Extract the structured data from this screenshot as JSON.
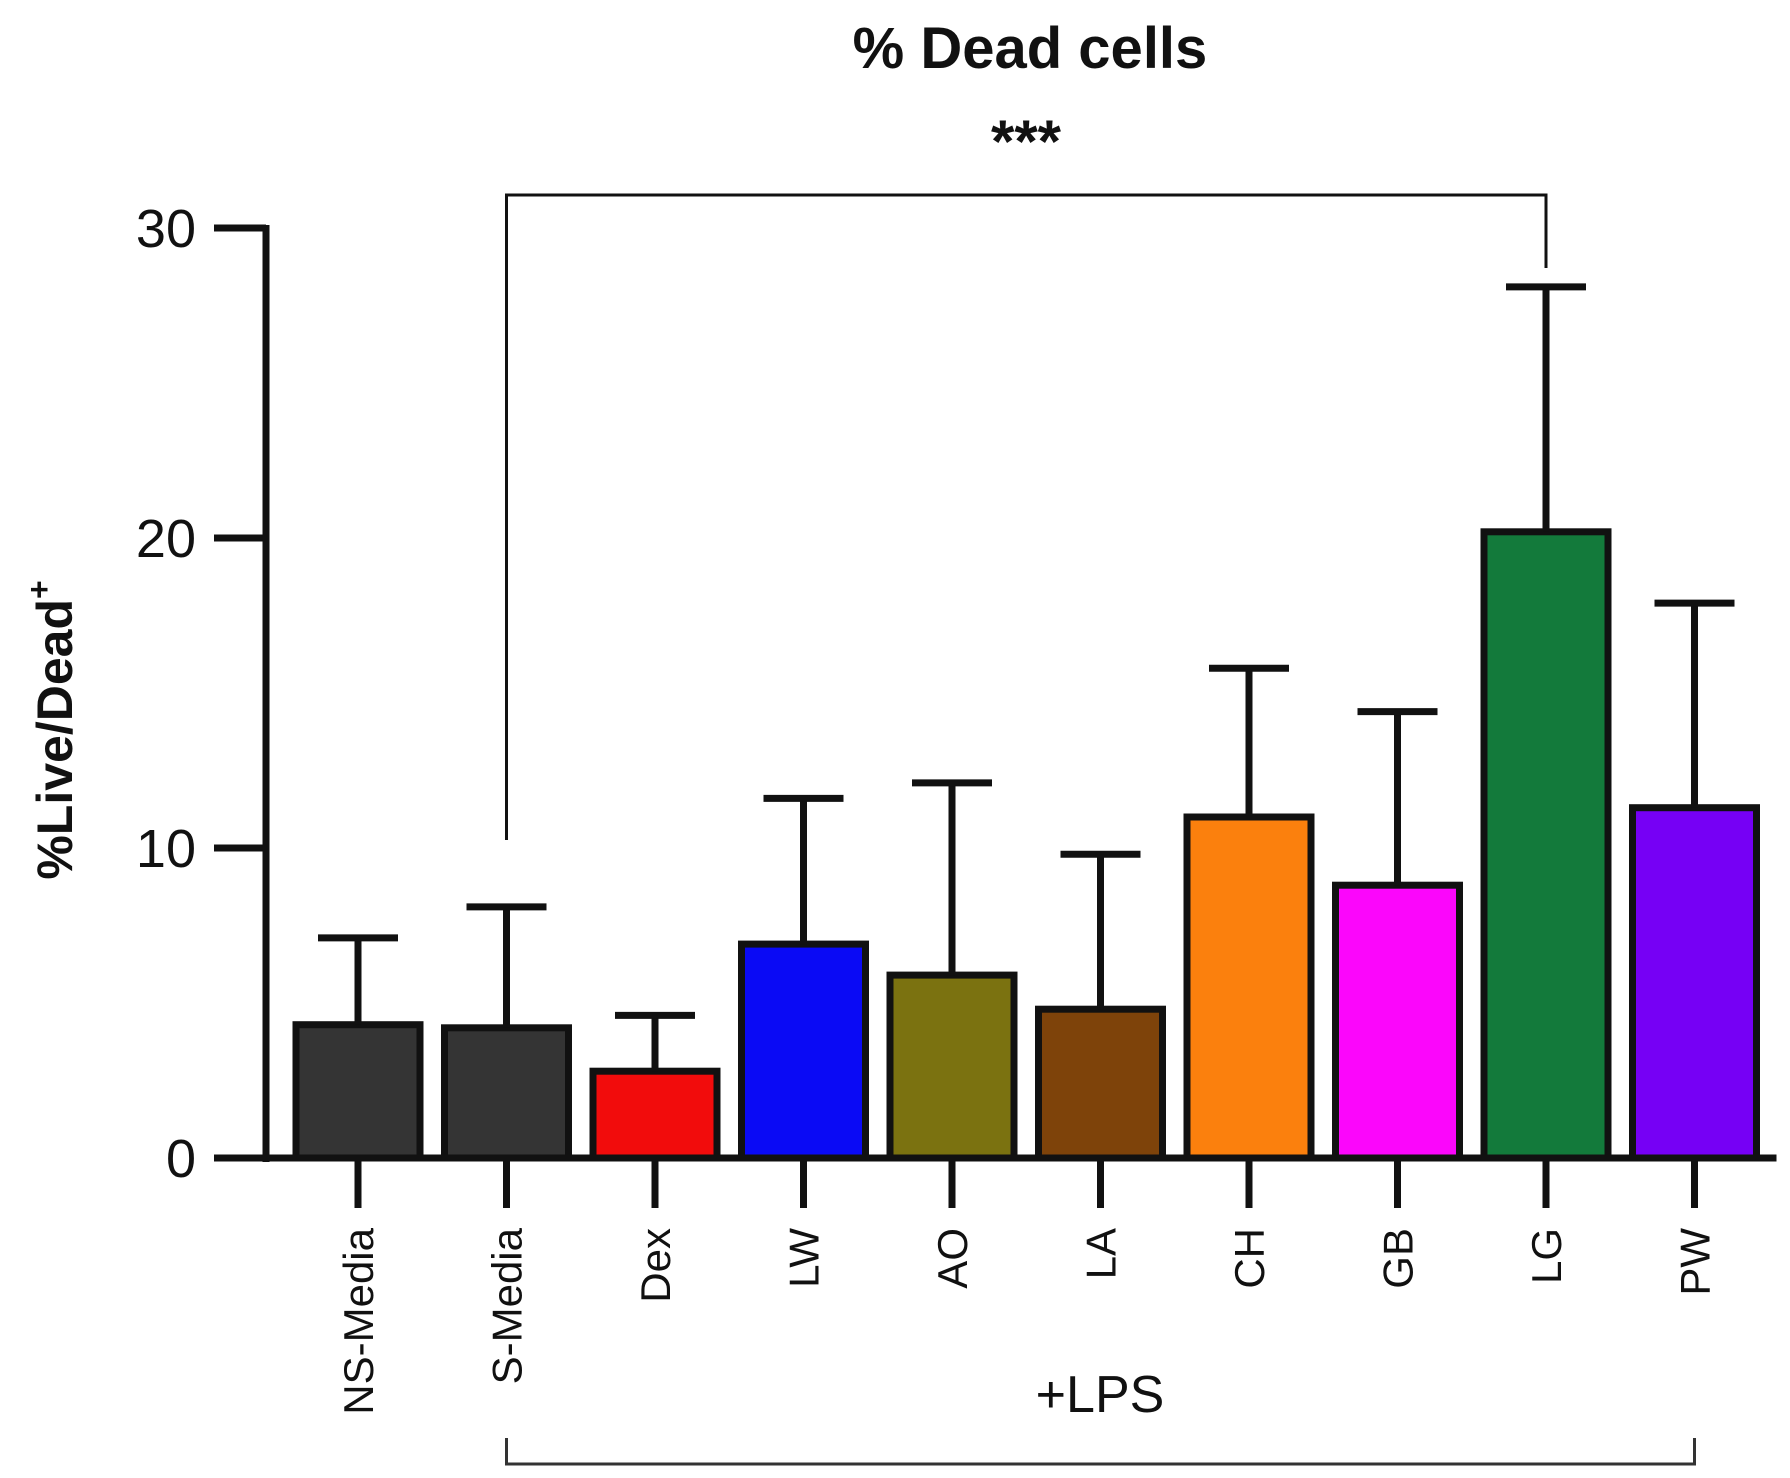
{
  "chart_data": {
    "type": "bar",
    "title": "% Dead cells",
    "ylabel": "%Live/Dead",
    "ylabel_superscript": "+",
    "xlabel": "",
    "ylim": [
      0,
      30
    ],
    "yticks": [
      0,
      10,
      20,
      30
    ],
    "ytick_labels": [
      "0",
      "10",
      "20",
      "30"
    ],
    "categories": [
      "NS-Media",
      "S-Media",
      "Dex",
      "LW",
      "AO",
      "LA",
      "CH",
      "GB",
      "LG",
      "PW"
    ],
    "values": [
      4.3,
      4.2,
      2.8,
      6.9,
      5.9,
      4.8,
      11.0,
      8.8,
      20.2,
      11.3
    ],
    "error_upper": [
      7.1,
      8.1,
      4.6,
      11.6,
      12.1,
      9.8,
      15.8,
      14.4,
      28.1,
      17.9
    ],
    "colors": [
      "#343434",
      "#343434",
      "#f20c0c",
      "#0a0af5",
      "#7b7210",
      "#7e430a",
      "#fb800d",
      "#fb06fb",
      "#137a3b",
      "#7600f5"
    ],
    "significance": {
      "label": "***",
      "from": "S-Media",
      "to": "LG"
    },
    "group": {
      "label": "+LPS",
      "from": "S-Media",
      "to": "PW"
    }
  }
}
